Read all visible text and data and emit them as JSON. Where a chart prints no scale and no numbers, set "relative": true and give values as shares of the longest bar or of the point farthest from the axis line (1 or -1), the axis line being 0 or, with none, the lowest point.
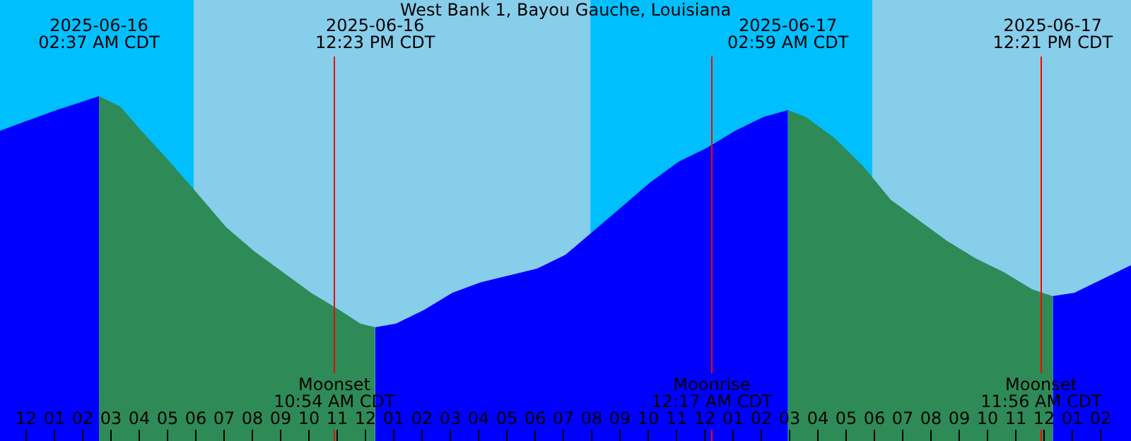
{
  "chart_data": {
    "type": "area",
    "title": "West Bank 1, Bayou Gauche, Louisiana",
    "relative": true,
    "xlim": [
      "2025-06-15T23:07",
      "2025-06-17T15:07"
    ],
    "xticks": [
      {
        "value": "2025-06-16T00:00",
        "label": "12"
      },
      {
        "value": "2025-06-16T01:00",
        "label": "01"
      },
      {
        "value": "2025-06-16T02:00",
        "label": "02"
      },
      {
        "value": "2025-06-16T03:00",
        "label": "03"
      },
      {
        "value": "2025-06-16T04:00",
        "label": "04"
      },
      {
        "value": "2025-06-16T05:00",
        "label": "05"
      },
      {
        "value": "2025-06-16T06:00",
        "label": "06"
      },
      {
        "value": "2025-06-16T07:00",
        "label": "07"
      },
      {
        "value": "2025-06-16T08:00",
        "label": "08"
      },
      {
        "value": "2025-06-16T09:00",
        "label": "09"
      },
      {
        "value": "2025-06-16T10:00",
        "label": "10"
      },
      {
        "value": "2025-06-16T11:00",
        "label": "11"
      },
      {
        "value": "2025-06-16T12:00",
        "label": "12"
      },
      {
        "value": "2025-06-16T13:00",
        "label": "01"
      },
      {
        "value": "2025-06-16T14:00",
        "label": "02"
      },
      {
        "value": "2025-06-16T15:00",
        "label": "03"
      },
      {
        "value": "2025-06-16T16:00",
        "label": "04"
      },
      {
        "value": "2025-06-16T17:00",
        "label": "05"
      },
      {
        "value": "2025-06-16T18:00",
        "label": "06"
      },
      {
        "value": "2025-06-16T19:00",
        "label": "07"
      },
      {
        "value": "2025-06-16T20:00",
        "label": "08"
      },
      {
        "value": "2025-06-16T21:00",
        "label": "09"
      },
      {
        "value": "2025-06-16T22:00",
        "label": "10"
      },
      {
        "value": "2025-06-16T23:00",
        "label": "11"
      },
      {
        "value": "2025-06-17T00:00",
        "label": "12"
      },
      {
        "value": "2025-06-17T01:00",
        "label": "01"
      },
      {
        "value": "2025-06-17T02:00",
        "label": "02"
      },
      {
        "value": "2025-06-17T03:00",
        "label": "03"
      },
      {
        "value": "2025-06-17T04:00",
        "label": "04"
      },
      {
        "value": "2025-06-17T05:00",
        "label": "05"
      },
      {
        "value": "2025-06-17T06:00",
        "label": "06"
      },
      {
        "value": "2025-06-17T07:00",
        "label": "07"
      },
      {
        "value": "2025-06-17T08:00",
        "label": "08"
      },
      {
        "value": "2025-06-17T09:00",
        "label": "09"
      },
      {
        "value": "2025-06-17T10:00",
        "label": "10"
      },
      {
        "value": "2025-06-17T11:00",
        "label": "11"
      },
      {
        "value": "2025-06-17T12:00",
        "label": "12"
      },
      {
        "value": "2025-06-17T13:00",
        "label": "01"
      },
      {
        "value": "2025-06-17T14:00",
        "label": "02"
      }
    ],
    "bands": [
      {
        "axis": "x",
        "from": "2025-06-15T23:07",
        "to": "2025-06-17T15:07",
        "color": "#87ceeb"
      },
      {
        "axis": "x",
        "from": "2025-06-15T23:07",
        "to": "2025-06-16T05:58",
        "color": "#00bfff"
      },
      {
        "axis": "x",
        "from": "2025-06-16T20:00",
        "to": "2025-06-17T05:58",
        "color": "#00bfff"
      }
    ],
    "series": [
      {
        "color": "#0000ff",
        "x": [
          "2025-06-15T23:07",
          "2025-06-16T00:07",
          "2025-06-16T01:07",
          "2025-06-16T01:52",
          "2025-06-16T02:37",
          "2025-06-16T07:00",
          "2025-06-16T12:23",
          "2025-06-16T13:07",
          "2025-06-16T14:07",
          "2025-06-16T15:07",
          "2025-06-16T16:07",
          "2025-06-16T17:07",
          "2025-06-16T18:07",
          "2025-06-16T19:07",
          "2025-06-16T20:07",
          "2025-06-16T21:07",
          "2025-06-16T22:07",
          "2025-06-16T23:07",
          "2025-06-17T00:07",
          "2025-06-17T01:07",
          "2025-06-17T02:07",
          "2025-06-17T02:59",
          "2025-06-17T07:00",
          "2025-06-17T12:21",
          "2025-06-17T13:07",
          "2025-06-17T14:07",
          "2025-06-17T15:07"
        ],
        "values": [
          0.9,
          0.93,
          0.96,
          0.98,
          1.0,
          null,
          0.33,
          0.34,
          0.38,
          0.43,
          0.46,
          0.48,
          0.5,
          0.54,
          0.61,
          0.68,
          0.75,
          0.81,
          0.85,
          0.9,
          0.94,
          0.96,
          null,
          0.42,
          0.43,
          0.47,
          0.51
        ]
      },
      {
        "color": "#2e8b57",
        "x": [
          "2025-06-16T02:37",
          "2025-06-16T03:22",
          "2025-06-16T04:07",
          "2025-06-16T05:07",
          "2025-06-16T05:58",
          "2025-06-16T07:07",
          "2025-06-16T08:07",
          "2025-06-16T09:07",
          "2025-06-16T10:07",
          "2025-06-16T11:07",
          "2025-06-16T11:52",
          "2025-06-16T12:23",
          "2025-06-16T20:00",
          "2025-06-17T02:59",
          "2025-06-17T03:37",
          "2025-06-17T04:37",
          "2025-06-17T05:37",
          "2025-06-17T06:37",
          "2025-06-17T07:37",
          "2025-06-17T08:37",
          "2025-06-17T09:37",
          "2025-06-17T10:37",
          "2025-06-17T11:37",
          "2025-06-17T12:21"
        ],
        "values": [
          1.0,
          0.97,
          0.9,
          0.81,
          0.73,
          0.62,
          0.55,
          0.49,
          0.43,
          0.38,
          0.34,
          0.33,
          null,
          0.96,
          0.94,
          0.88,
          0.8,
          0.7,
          0.64,
          0.58,
          0.53,
          0.49,
          0.44,
          0.42
        ]
      }
    ],
    "ref_lines": [
      {
        "axis": "x",
        "value": "2025-06-16T10:54",
        "label": "Moonset\n10:54 AM CDT",
        "color": "#ff0000"
      },
      {
        "axis": "x",
        "value": "2025-06-17T00:17",
        "label": "Moonrise\n12:17 AM CDT",
        "color": "#ff0000"
      },
      {
        "axis": "x",
        "value": "2025-06-17T11:56",
        "label": "Moonset\n11:56 AM CDT",
        "color": "#ff0000"
      }
    ],
    "annotations": [
      "2025-06-16\n02:37 AM CDT",
      "2025-06-16\n12:23 PM CDT",
      "2025-06-17\n02:59 AM CDT",
      "2025-06-17\n12:21 PM CDT"
    ]
  }
}
